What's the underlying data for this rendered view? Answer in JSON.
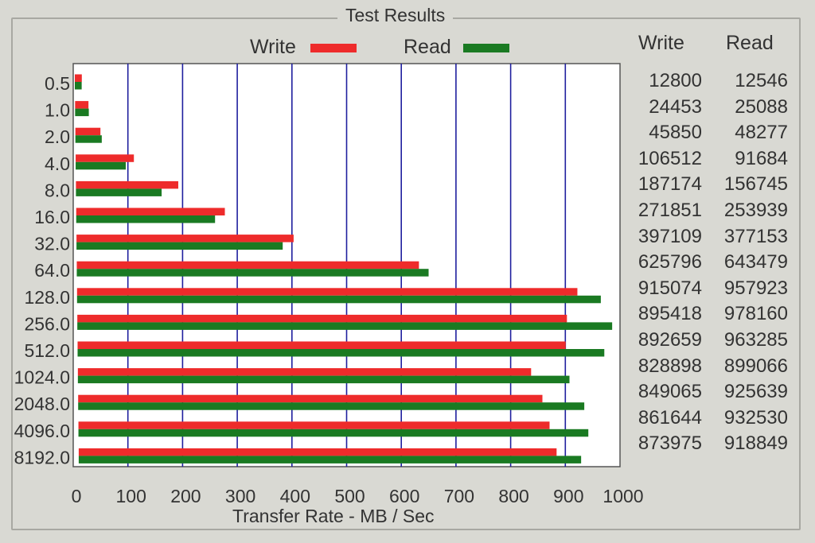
{
  "title": "Test Results",
  "legend": {
    "write": "Write",
    "read": "Read"
  },
  "colors": {
    "write": "#ee2b2b",
    "read": "#1a7a22",
    "grid": "#1f1f9e"
  },
  "table": {
    "write_header": "Write",
    "read_header": "Read"
  },
  "chart_data": {
    "type": "bar",
    "orientation": "horizontal",
    "title": "Test Results",
    "xlabel": "Transfer Rate - MB / Sec",
    "ylabel": "",
    "xlim": [
      0,
      1000
    ],
    "xticks": [
      "0",
      "100",
      "200",
      "300",
      "400",
      "500",
      "600",
      "700",
      "800",
      "900",
      "1000"
    ],
    "grid": true,
    "legend_position": "top",
    "categories": [
      "0.5",
      "1.0",
      "2.0",
      "4.0",
      "8.0",
      "16.0",
      "32.0",
      "64.0",
      "128.0",
      "256.0",
      "512.0",
      "1024.0",
      "2048.0",
      "4096.0",
      "8192.0"
    ],
    "series": [
      {
        "name": "Write",
        "color": "#ee2b2b",
        "values": [
          12800,
          24453,
          45850,
          106512,
          187174,
          271851,
          397109,
          625796,
          915074,
          895418,
          892659,
          828898,
          849065,
          861644,
          873975
        ],
        "labels": [
          "12800",
          "24453",
          "45850",
          "106512",
          "187174",
          "271851",
          "397109",
          "625796",
          "915074",
          "895418",
          "892659",
          "828898",
          "849065",
          "861644",
          "873975"
        ]
      },
      {
        "name": "Read",
        "color": "#1a7a22",
        "values": [
          12546,
          25088,
          48277,
          91684,
          156745,
          253939,
          377153,
          643479,
          957923,
          978160,
          963285,
          899066,
          925639,
          932530,
          918849
        ],
        "labels": [
          "12546",
          "25088",
          "48277",
          "91684",
          "156745",
          "253939",
          "377153",
          "643479",
          "957923",
          "978160",
          "963285",
          "899066",
          "925639",
          "932530",
          "918849"
        ]
      }
    ],
    "value_unit_note": ""
  }
}
